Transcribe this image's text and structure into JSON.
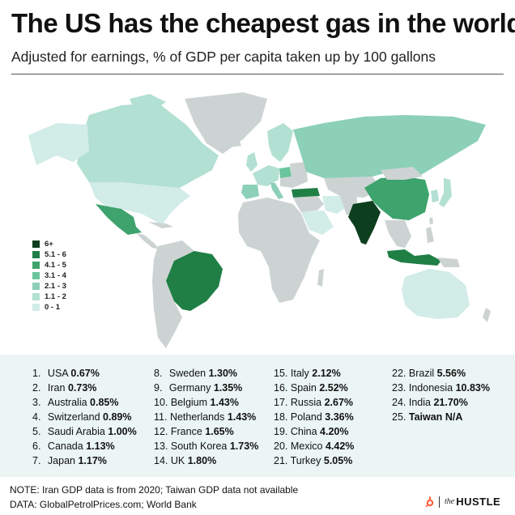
{
  "header": {
    "title": "The US has the cheapest gas in the world",
    "subtitle": "Adjusted for earnings, % of GDP per capita taken up by 100 gallons"
  },
  "colors": {
    "land_nodata": "#cdd3d3",
    "band_0_1": "#d2ece7",
    "band_1_2": "#b2e0d2",
    "band_2_3": "#8cd0b7",
    "band_3_4": "#6ac49c",
    "band_4_5": "#3ea36d",
    "band_5_6": "#1f7f45",
    "band_6plus": "#0d3f1e",
    "ranking_bg": "#eaf5f4"
  },
  "legend": [
    {
      "label": "6+",
      "color": "#0d3f1e"
    },
    {
      "label": "5.1 - 6",
      "color": "#1f7f45"
    },
    {
      "label": "4.1 - 5",
      "color": "#3ea36d"
    },
    {
      "label": "3.1 - 4",
      "color": "#6ac49c"
    },
    {
      "label": "2.1 - 3",
      "color": "#8cd0b7"
    },
    {
      "label": "1.1 - 2",
      "color": "#b2e0d2"
    },
    {
      "label": "0 - 1",
      "color": "#d2ece7"
    }
  ],
  "ranking": [
    {
      "rank": "1.",
      "country": "USA",
      "value": "0.67%"
    },
    {
      "rank": "2.",
      "country": "Iran",
      "value": "0.73%"
    },
    {
      "rank": "3.",
      "country": "Australia",
      "value": "0.85%"
    },
    {
      "rank": "4.",
      "country": "Switzerland",
      "value": "0.89%"
    },
    {
      "rank": "5.",
      "country": "Saudi Arabia",
      "value": "1.00%"
    },
    {
      "rank": "6.",
      "country": "Canada",
      "value": "1.13%"
    },
    {
      "rank": "7.",
      "country": "Japan",
      "value": "1.17%"
    },
    {
      "rank": "8.",
      "country": "Sweden",
      "value": "1.30%"
    },
    {
      "rank": "9.",
      "country": "Germany",
      "value": "1.35%"
    },
    {
      "rank": "10.",
      "country": "Belgium",
      "value": "1.43%"
    },
    {
      "rank": "11.",
      "country": "Netherlands",
      "value": "1.43%"
    },
    {
      "rank": "12.",
      "country": "France",
      "value": "1.65%"
    },
    {
      "rank": "13.",
      "country": "South Korea",
      "value": "1.73%"
    },
    {
      "rank": "14.",
      "country": "UK",
      "value": "1.80%"
    },
    {
      "rank": "15.",
      "country": "Italy",
      "value": "2.12%"
    },
    {
      "rank": "16.",
      "country": "Spain",
      "value": "2.52%"
    },
    {
      "rank": "17.",
      "country": "Russia",
      "value": "2.67%"
    },
    {
      "rank": "18.",
      "country": "Poland",
      "value": "3.36%"
    },
    {
      "rank": "19.",
      "country": "China",
      "value": "4.20%"
    },
    {
      "rank": "20.",
      "country": "Mexico",
      "value": "4.42%"
    },
    {
      "rank": "21.",
      "country": "Turkey",
      "value": "5.05%"
    },
    {
      "rank": "22.",
      "country": "Brazil",
      "value": "5.56%"
    },
    {
      "rank": "23.",
      "country": "Indonesia",
      "value": "10.83%"
    },
    {
      "rank": "24.",
      "country": "India",
      "value": "21.70%"
    },
    {
      "rank": "25.",
      "country": "Taiwan",
      "value": "N/A"
    }
  ],
  "footer": {
    "note": "NOTE: Iran GDP data is from 2020; Taiwan GDP data not available",
    "source": "DATA: GlobalPetrolPrices.com; World Bank",
    "logo_the": "the",
    "logo_name": "HUSTLE"
  }
}
